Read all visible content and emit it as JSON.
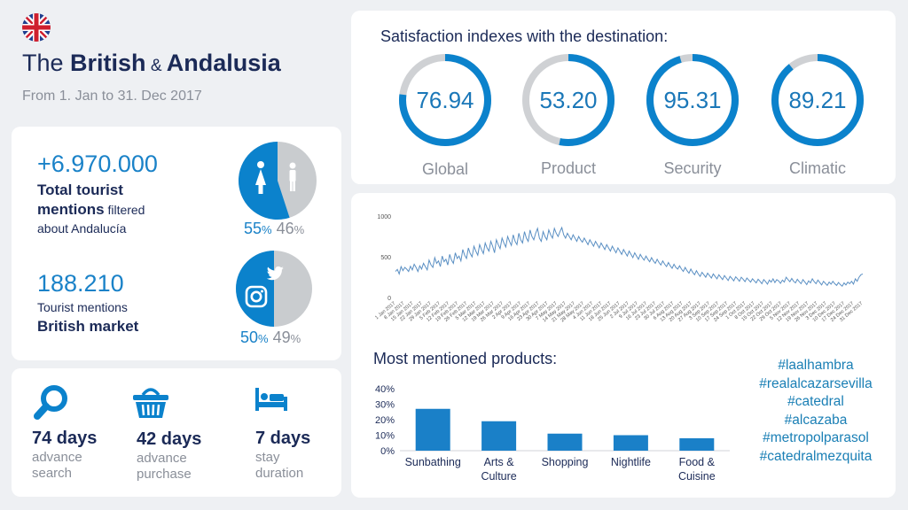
{
  "header": {
    "title_part1": "The ",
    "title_bold1": "British",
    "title_amp": " & ",
    "title_bold2": "Andalusia",
    "subtitle": "From 1. Jan to 31. Dec 2017"
  },
  "mentions": {
    "total_value": "+6.970.000",
    "total_label_bold1": "Total tourist",
    "total_label_bold2": "mentions",
    "total_label_rest": " filtered",
    "total_label_line3": "about Andalucía",
    "gender_female_pct": "55",
    "gender_male_pct": "46",
    "pct_symbol": "%",
    "british_value": "188.210",
    "british_label_line1": "Tourist mentions",
    "british_label_line2": "British market",
    "instagram_pct": "50",
    "twitter_pct": "49",
    "colors": {
      "primary": "#0b82cc",
      "secondary": "#c9cccf"
    }
  },
  "stats": [
    {
      "value": "74 days",
      "label_line1": "advance",
      "label_line2": "search",
      "icon": "magnifier-icon"
    },
    {
      "value": "42 days",
      "label_line1": "advance",
      "label_line2": "purchase",
      "icon": "basket-icon"
    },
    {
      "value": "7 days",
      "label_line1": "stay",
      "label_line2": "duration",
      "icon": "bed-icon"
    }
  ],
  "satisfaction": {
    "title": "Satisfaction indexes with the destination:",
    "gauges": [
      {
        "value": "76.94",
        "label": "Global",
        "fill": 76.94
      },
      {
        "value": "53.20",
        "label": "Product",
        "fill": 53.2
      },
      {
        "value": "95.31",
        "label": "Security",
        "fill": 95.31
      },
      {
        "value": "89.21",
        "label": "Climatic",
        "fill": 89.21
      }
    ],
    "colors": {
      "fill": "#0b82cc",
      "track": "#cfd1d4"
    }
  },
  "chart_data": [
    {
      "type": "line",
      "title": "",
      "xlabel": "",
      "ylabel": "",
      "ylim": [
        0,
        1000
      ],
      "y_ticks": [
        "0",
        "500",
        "1000"
      ],
      "grid": false,
      "x_tick_labels": [
        "1 Jan 2017",
        "8 Jan 2017",
        "15 Jan 2017",
        "22 Jan 2017",
        "29 Jan 2017",
        "5 Feb 2017",
        "12 Feb 2017",
        "19 Feb 2017",
        "26 Feb 2017",
        "5 Mar 2017",
        "12 Mar 2017",
        "19 Mar 2017",
        "26 Mar 2017",
        "2 Apr 2017",
        "9 Apr 2017",
        "16 Apr 2017",
        "23 Apr 2017",
        "30 Apr 2017",
        "7 May 2017",
        "14 May 2017",
        "21 May 2017",
        "28 May 2017",
        "4 Jun 2017",
        "11 Jun 2017",
        "18 Jun 2017",
        "25 Jun 2017",
        "2 Jul 2017",
        "9 Jul 2017",
        "16 Jul 2017",
        "23 Jul 2017",
        "30 Jul 2017",
        "6 Aug 2017",
        "13 Aug 2017",
        "20 Aug 2017",
        "27 Aug 2017",
        "3 Sep 2017",
        "10 Sep 2017",
        "17 Sep 2017",
        "24 Sep 2017",
        "1 Oct 2017",
        "8 Oct 2017",
        "15 Oct 2017",
        "22 Oct 2017",
        "29 Oct 2017",
        "5 Nov 2017",
        "12 Nov 2017",
        "19 Nov 2017",
        "26 Nov 2017",
        "3 Dec 2017",
        "10 Dec 2017",
        "17 Dec 2017",
        "24 Dec 2017",
        "31 Dec 2017"
      ],
      "series": [
        {
          "color": "#5a8fc3",
          "values": [
            330,
            355,
            300,
            390,
            340,
            380,
            360,
            330,
            395,
            350,
            420,
            380,
            330,
            400,
            360,
            430,
            390,
            350,
            470,
            410,
            380,
            500,
            430,
            460,
            390,
            520,
            450,
            480,
            410,
            540,
            470,
            430,
            560,
            490,
            520,
            460,
            600,
            530,
            490,
            620,
            550,
            510,
            640,
            580,
            530,
            660,
            600,
            550,
            680,
            620,
            580,
            700,
            640,
            560,
            720,
            660,
            610,
            740,
            680,
            630,
            760,
            700,
            650,
            780,
            700,
            660,
            800,
            720,
            680,
            820,
            740,
            700,
            840,
            760,
            720,
            800,
            860,
            740,
            700,
            820,
            760,
            720,
            840,
            780,
            740,
            860,
            800,
            760,
            820,
            870,
            780,
            740,
            800,
            760,
            720,
            780,
            740,
            700,
            760,
            720,
            690,
            740,
            700,
            660,
            720,
            680,
            640,
            700,
            660,
            620,
            680,
            640,
            600,
            660,
            620,
            580,
            640,
            600,
            560,
            620,
            580,
            540,
            600,
            560,
            520,
            580,
            540,
            500,
            560,
            520,
            480,
            540,
            500,
            470,
            520,
            480,
            450,
            500,
            460,
            430,
            480,
            440,
            410,
            460,
            420,
            390,
            440,
            400,
            370,
            420,
            380,
            360,
            400,
            360,
            330,
            380,
            340,
            310,
            360,
            320,
            290,
            340,
            300,
            270,
            320,
            290,
            260,
            310,
            280,
            250,
            300,
            270,
            240,
            290,
            260,
            230,
            280,
            250,
            220,
            270,
            245,
            215,
            265,
            240,
            210,
            260,
            235,
            205,
            250,
            225,
            200,
            240,
            215,
            190,
            235,
            210,
            180,
            230,
            205,
            175,
            225,
            200,
            240,
            195,
            230,
            215,
            185,
            225,
            200,
            260,
            230,
            205,
            245,
            210,
            190,
            235,
            205,
            180,
            230,
            200,
            170,
            215,
            190,
            240,
            205,
            180,
            225,
            195,
            165,
            210,
            185,
            160,
            200,
            175,
            210,
            180,
            160,
            195,
            170,
            150,
            190,
            165,
            200,
            180,
            210,
            175,
            240,
            210,
            260,
            290,
            300
          ]
        }
      ]
    },
    {
      "type": "bar",
      "title": "Most mentioned products:",
      "categories": [
        "Sunbathing",
        "Arts &\nCulture",
        "Shopping",
        "Nightlife",
        "Food &\nCuisine"
      ],
      "values": [
        27,
        19,
        11,
        10,
        8
      ],
      "ylim": [
        0,
        40
      ],
      "y_ticks": [
        "0%",
        "10%",
        "20%",
        "30%",
        "40%"
      ],
      "color": "#1a80c8"
    }
  ],
  "hashtags": [
    "#laalhambra",
    "#realalcazarsevilla",
    "#catedral",
    "#alcazaba",
    "#metropolparasol",
    "#catedralmezquita"
  ],
  "icons": {
    "flag": "uk-flag-icon",
    "female": "female-icon",
    "male": "male-icon",
    "instagram": "instagram-icon",
    "twitter": "twitter-icon"
  }
}
